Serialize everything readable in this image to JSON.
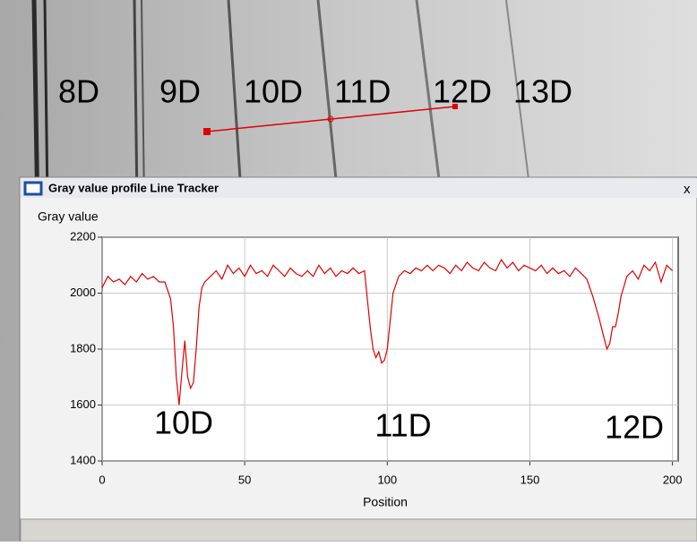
{
  "image_labels": [
    "8D",
    "9D",
    "10D",
    "11D",
    "12D",
    "13D"
  ],
  "window": {
    "title": "Gray value profile Line Tracker",
    "close": "x"
  },
  "chart_data": {
    "type": "line",
    "ylabel": "Gray value",
    "xlabel": "Position",
    "annotations": [
      "10D",
      "11D",
      "12D"
    ],
    "x": [
      0,
      2,
      4,
      6,
      8,
      10,
      12,
      14,
      16,
      18,
      20,
      22,
      23,
      24,
      25,
      26,
      27,
      28,
      29,
      30,
      31,
      32,
      33,
      34,
      35,
      36,
      38,
      40,
      42,
      44,
      46,
      48,
      50,
      52,
      54,
      56,
      58,
      60,
      62,
      64,
      66,
      68,
      70,
      72,
      74,
      76,
      78,
      80,
      82,
      84,
      86,
      88,
      90,
      92,
      93,
      94,
      95,
      96,
      97,
      98,
      99,
      100,
      101,
      102,
      104,
      106,
      108,
      110,
      112,
      114,
      116,
      118,
      120,
      122,
      124,
      126,
      128,
      130,
      132,
      134,
      136,
      138,
      140,
      142,
      144,
      146,
      148,
      150,
      152,
      154,
      156,
      158,
      160,
      162,
      164,
      166,
      168,
      170,
      172,
      174,
      175,
      176,
      177,
      178,
      179,
      180,
      181,
      182,
      184,
      186,
      188,
      190,
      192,
      194,
      196,
      198,
      200
    ],
    "series": [
      {
        "color": "#dd0000",
        "values": [
          2020,
          2060,
          2040,
          2050,
          2030,
          2060,
          2040,
          2070,
          2050,
          2060,
          2040,
          2040,
          2010,
          1980,
          1880,
          1700,
          1600,
          1720,
          1830,
          1700,
          1660,
          1680,
          1800,
          1950,
          2020,
          2040,
          2060,
          2080,
          2050,
          2100,
          2070,
          2090,
          2060,
          2100,
          2070,
          2080,
          2060,
          2100,
          2080,
          2060,
          2090,
          2070,
          2060,
          2080,
          2060,
          2100,
          2070,
          2090,
          2060,
          2080,
          2070,
          2090,
          2070,
          2080,
          1980,
          1880,
          1800,
          1770,
          1790,
          1750,
          1760,
          1800,
          1900,
          2000,
          2060,
          2080,
          2070,
          2090,
          2080,
          2100,
          2080,
          2100,
          2090,
          2070,
          2100,
          2080,
          2110,
          2090,
          2080,
          2110,
          2090,
          2080,
          2120,
          2090,
          2110,
          2080,
          2100,
          2090,
          2080,
          2100,
          2070,
          2090,
          2070,
          2080,
          2060,
          2090,
          2070,
          2050,
          1990,
          1920,
          1880,
          1840,
          1800,
          1820,
          1880,
          1880,
          1930,
          1990,
          2060,
          2080,
          2050,
          2100,
          2080,
          2110,
          2040,
          2100,
          2080
        ]
      }
    ],
    "xlim": [
      0,
      202
    ],
    "xticks": [
      0,
      50,
      100,
      150,
      200
    ],
    "ylim": [
      1400,
      2200
    ],
    "yticks": [
      1400,
      1600,
      1800,
      2000,
      2200
    ],
    "grid": true
  }
}
